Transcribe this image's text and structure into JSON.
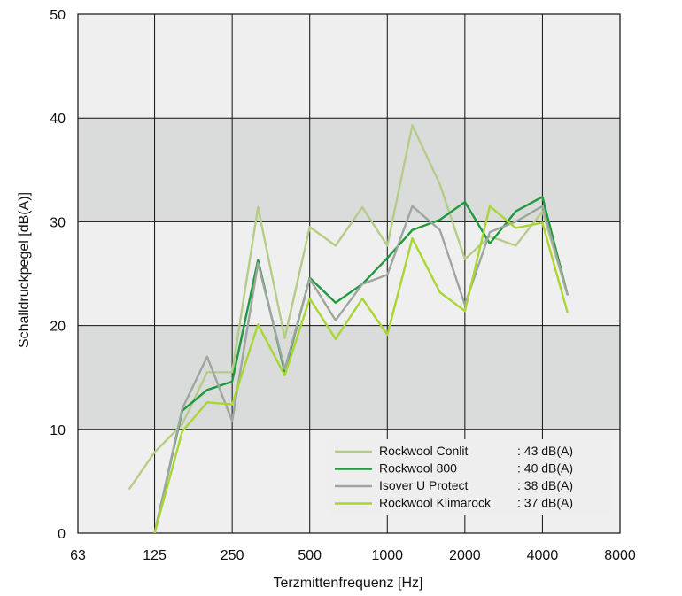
{
  "chart_data": {
    "type": "line",
    "xlabel": "Terzmittenfrequenz [Hz]",
    "ylabel": "Schalldruckpegel [dB(A)]",
    "ylim": [
      0,
      50
    ],
    "xscale": "log",
    "xlim": [
      63,
      8000
    ],
    "x_ticks": [
      63,
      125,
      250,
      500,
      1000,
      2000,
      4000,
      8000
    ],
    "x_tick_labels": [
      "63",
      "125",
      "250",
      "500",
      "1000",
      "2000",
      "4000",
      "8000"
    ],
    "y_ticks": [
      0,
      10,
      20,
      30,
      40,
      50
    ],
    "y_tick_labels": [
      "0",
      "10",
      "20",
      "30",
      "40",
      "50"
    ],
    "grid": true,
    "shaded_bands": [
      [
        10,
        20
      ],
      [
        30,
        40
      ]
    ],
    "legend_position": "bottom-right",
    "series": [
      {
        "name": "Rockwool Conlit",
        "value_label": ": 43 dB(A)",
        "color": "#b5cc88",
        "points": [
          [
            100,
            4.3
          ],
          [
            125,
            7.8
          ],
          [
            160,
            10.5
          ],
          [
            200,
            15.5
          ],
          [
            250,
            15.5
          ],
          [
            315,
            31.4
          ],
          [
            400,
            18.8
          ],
          [
            500,
            29.5
          ],
          [
            630,
            27.7
          ],
          [
            800,
            31.4
          ],
          [
            1000,
            27.7
          ],
          [
            1250,
            39.3
          ],
          [
            1600,
            33.6
          ],
          [
            2000,
            26.4
          ],
          [
            2500,
            28.6
          ],
          [
            3150,
            27.7
          ],
          [
            4000,
            31.0
          ],
          [
            5000,
            23.0
          ]
        ]
      },
      {
        "name": "Rockwool 800",
        "value_label": ": 40 dB(A)",
        "color": "#1f9a3e",
        "points": [
          [
            125,
            0
          ],
          [
            160,
            11.8
          ],
          [
            200,
            13.8
          ],
          [
            250,
            14.6
          ],
          [
            315,
            26.3
          ],
          [
            400,
            15.5
          ],
          [
            500,
            24.6
          ],
          [
            630,
            22.2
          ],
          [
            800,
            24.0
          ],
          [
            1000,
            26.5
          ],
          [
            1250,
            29.2
          ],
          [
            1600,
            30.2
          ],
          [
            2000,
            31.9
          ],
          [
            2500,
            27.9
          ],
          [
            3150,
            31.0
          ],
          [
            4000,
            32.4
          ],
          [
            5000,
            23.0
          ]
        ]
      },
      {
        "name": "Isover U Protect",
        "value_label": ": 38 dB(A)",
        "color": "#9ea69f",
        "points": [
          [
            125,
            0
          ],
          [
            160,
            12.0
          ],
          [
            200,
            17.0
          ],
          [
            250,
            10.8
          ],
          [
            315,
            26.0
          ],
          [
            400,
            15.8
          ],
          [
            500,
            24.5
          ],
          [
            630,
            20.5
          ],
          [
            800,
            24.0
          ],
          [
            1000,
            24.9
          ],
          [
            1250,
            31.5
          ],
          [
            1600,
            29.2
          ],
          [
            2000,
            22.0
          ],
          [
            2500,
            29.0
          ],
          [
            3150,
            30.0
          ],
          [
            4000,
            31.5
          ],
          [
            5000,
            23.0
          ]
        ]
      },
      {
        "name": "Rockwool Klimarock",
        "value_label": ": 37 dB(A)",
        "color": "#a9d632",
        "points": [
          [
            125,
            0
          ],
          [
            160,
            9.8
          ],
          [
            200,
            12.6
          ],
          [
            250,
            12.4
          ],
          [
            315,
            20.1
          ],
          [
            400,
            15.2
          ],
          [
            500,
            22.6
          ],
          [
            630,
            18.7
          ],
          [
            800,
            22.6
          ],
          [
            1000,
            19.1
          ],
          [
            1250,
            28.4
          ],
          [
            1600,
            23.2
          ],
          [
            2000,
            21.4
          ],
          [
            2500,
            31.5
          ],
          [
            3150,
            29.4
          ],
          [
            4000,
            29.9
          ],
          [
            5000,
            21.3
          ]
        ]
      }
    ]
  }
}
